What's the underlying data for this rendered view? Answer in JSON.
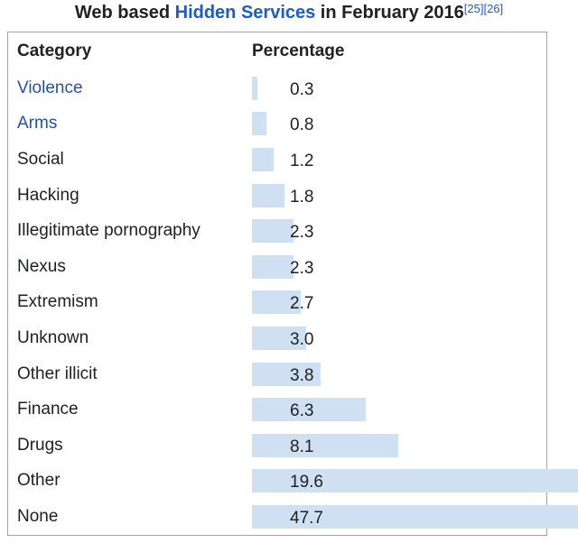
{
  "title": {
    "prefix": "Web based ",
    "link_text": "Hidden Services",
    "suffix": " in February 2016",
    "references": [
      "[25]",
      "[26]"
    ]
  },
  "table": {
    "header_category": "Category",
    "header_percentage": "Percentage",
    "rows": [
      {
        "label": "Violence",
        "value": 0.3,
        "display": "0.3",
        "link": true
      },
      {
        "label": "Arms",
        "value": 0.8,
        "display": "0.8",
        "link": true
      },
      {
        "label": "Social",
        "value": 1.2,
        "display": "1.2",
        "link": false
      },
      {
        "label": "Hacking",
        "value": 1.8,
        "display": "1.8",
        "link": false
      },
      {
        "label": "Illegitimate pornography",
        "value": 2.3,
        "display": "2.3",
        "link": false
      },
      {
        "label": "Nexus",
        "value": 2.3,
        "display": "2.3",
        "link": false
      },
      {
        "label": "Extremism",
        "value": 2.7,
        "display": "2.7",
        "link": false
      },
      {
        "label": "Unknown",
        "value": 3.0,
        "display": "3.0",
        "link": false
      },
      {
        "label": "Other illicit",
        "value": 3.8,
        "display": "3.8",
        "link": false
      },
      {
        "label": "Finance",
        "value": 6.3,
        "display": "6.3",
        "link": false
      },
      {
        "label": "Drugs",
        "value": 8.1,
        "display": "8.1",
        "link": false
      },
      {
        "label": "Other",
        "value": 19.6,
        "display": "19.6",
        "link": false
      },
      {
        "label": "None",
        "value": 47.7,
        "display": "47.7",
        "link": false
      }
    ]
  },
  "colors": {
    "bar_fill": "#cfe0f2",
    "link_blue": "#2152ad",
    "title_link_blue": "#1e5bc6",
    "text": "#202122",
    "border": "#a2a2a2"
  },
  "chart_data": {
    "type": "bar",
    "orientation": "horizontal",
    "title": "Web based Hidden Services in February 2016",
    "title_references": [
      "[25]",
      "[26]"
    ],
    "xlabel": "Percentage",
    "ylabel": "Category",
    "categories": [
      "Violence",
      "Arms",
      "Social",
      "Hacking",
      "Illegitimate pornography",
      "Nexus",
      "Extremism",
      "Unknown",
      "Other illicit",
      "Finance",
      "Drugs",
      "Other",
      "None"
    ],
    "values": [
      0.3,
      0.8,
      1.2,
      1.8,
      2.3,
      2.3,
      2.7,
      3.0,
      3.8,
      6.3,
      8.1,
      19.6,
      47.7
    ],
    "bar_color": "#cfe0f2",
    "grid": false,
    "legend": false,
    "notes": "Bars for Other and None overflow past the table right border and are clipped at the image edge"
  }
}
